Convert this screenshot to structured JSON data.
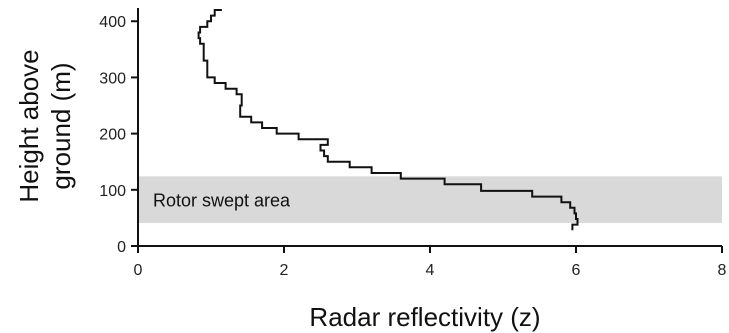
{
  "chart_data": {
    "type": "line",
    "xlabel": "Radar reflectivity (z)",
    "ylabel_lines": [
      "Height above",
      "ground (m)"
    ],
    "xlim": [
      0,
      8
    ],
    "ylim": [
      0,
      420
    ],
    "xticks": [
      0,
      2,
      4,
      6,
      8
    ],
    "yticks": [
      0,
      100,
      200,
      300,
      400
    ],
    "grid": false,
    "band": {
      "label": "Rotor swept area",
      "y_range": [
        41,
        124
      ]
    },
    "series": [
      {
        "step": "horizontal-then-vertical",
        "points": [
          [
            5.95,
            28
          ],
          [
            5.95,
            38
          ],
          [
            6.02,
            38
          ],
          [
            6.02,
            48
          ],
          [
            6.0,
            48
          ],
          [
            6.0,
            58
          ],
          [
            5.98,
            58
          ],
          [
            5.98,
            68
          ],
          [
            5.92,
            68
          ],
          [
            5.92,
            78
          ],
          [
            5.8,
            78
          ],
          [
            5.8,
            88
          ],
          [
            5.4,
            88
          ],
          [
            5.4,
            98
          ],
          [
            4.7,
            98
          ],
          [
            4.7,
            110
          ],
          [
            4.2,
            110
          ],
          [
            4.2,
            120
          ],
          [
            3.6,
            120
          ],
          [
            3.6,
            130
          ],
          [
            3.2,
            130
          ],
          [
            3.2,
            140
          ],
          [
            2.9,
            140
          ],
          [
            2.9,
            150
          ],
          [
            2.6,
            150
          ],
          [
            2.6,
            160
          ],
          [
            2.55,
            160
          ],
          [
            2.55,
            170
          ],
          [
            2.5,
            170
          ],
          [
            2.5,
            180
          ],
          [
            2.6,
            180
          ],
          [
            2.6,
            190
          ],
          [
            2.2,
            190
          ],
          [
            2.2,
            200
          ],
          [
            1.9,
            200
          ],
          [
            1.9,
            210
          ],
          [
            1.7,
            210
          ],
          [
            1.7,
            220
          ],
          [
            1.55,
            220
          ],
          [
            1.55,
            230
          ],
          [
            1.4,
            230
          ],
          [
            1.4,
            240
          ],
          [
            1.4,
            250
          ],
          [
            1.42,
            250
          ],
          [
            1.42,
            260
          ],
          [
            1.42,
            270
          ],
          [
            1.35,
            270
          ],
          [
            1.35,
            280
          ],
          [
            1.2,
            280
          ],
          [
            1.2,
            290
          ],
          [
            1.05,
            290
          ],
          [
            1.05,
            300
          ],
          [
            0.95,
            300
          ],
          [
            0.95,
            310
          ],
          [
            0.95,
            320
          ],
          [
            0.95,
            330
          ],
          [
            0.9,
            330
          ],
          [
            0.9,
            340
          ],
          [
            0.9,
            350
          ],
          [
            0.9,
            360
          ],
          [
            0.85,
            360
          ],
          [
            0.85,
            370
          ],
          [
            0.83,
            370
          ],
          [
            0.83,
            380
          ],
          [
            0.85,
            380
          ],
          [
            0.85,
            390
          ],
          [
            0.95,
            390
          ],
          [
            0.95,
            400
          ],
          [
            1.0,
            400
          ],
          [
            1.0,
            410
          ],
          [
            1.05,
            410
          ],
          [
            1.05,
            420
          ],
          [
            1.15,
            420
          ]
        ]
      }
    ]
  },
  "colors": {
    "band": "#d9d9d9",
    "line": "#111111",
    "axis": "#111111"
  }
}
